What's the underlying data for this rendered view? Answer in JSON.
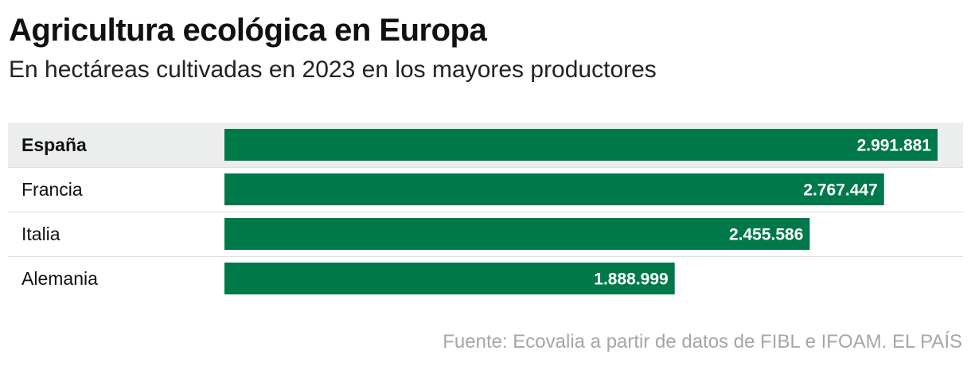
{
  "header": {
    "title": "Agricultura ecológica en Europa",
    "subtitle": "En hectáreas cultivadas en 2023 en los mayores productores"
  },
  "footer": {
    "source": "Fuente: Ecovalia a partir de datos de FIBL e IFOAM. EL PAÍS"
  },
  "colors": {
    "bar": "#00794a",
    "highlight_row_bg": "#eceeee",
    "divider": "#dedede",
    "value_text": "#ffffff"
  },
  "chart_data": {
    "type": "bar",
    "orientation": "horizontal",
    "title": "Agricultura ecológica en Europa",
    "subtitle": "En hectáreas cultivadas en 2023 en los mayores productores",
    "categories": [
      "España",
      "Francia",
      "Italia",
      "Alemania"
    ],
    "values": [
      2991881,
      2767447,
      2455586,
      1888999
    ],
    "value_labels": [
      "2.991.881",
      "2.767.447",
      "2.455.586",
      "1.888.999"
    ],
    "highlight": "España",
    "unit": "hectáreas",
    "xlim": [
      0,
      2991881
    ],
    "xlabel": "",
    "ylabel": "",
    "grid": false
  }
}
